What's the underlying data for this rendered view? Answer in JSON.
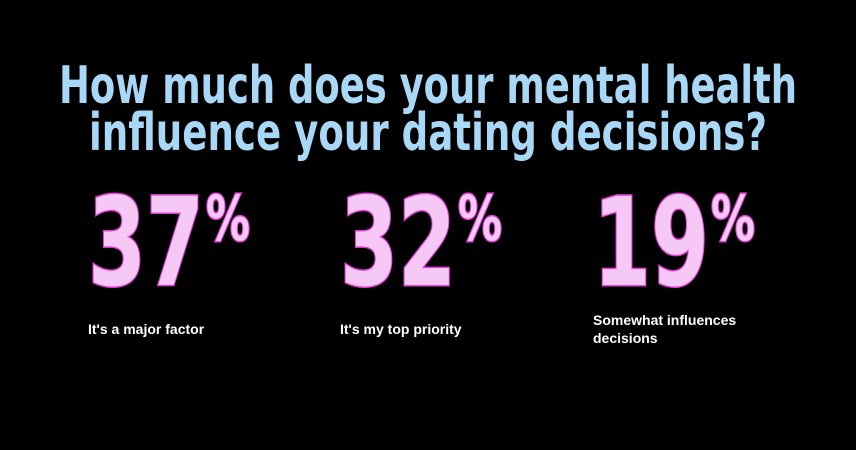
{
  "title": [
    "How much does your mental health",
    "influence your dating decisions?"
  ],
  "stats": [
    {
      "number": 37,
      "suffix": "%",
      "label": "It's a major factor"
    },
    {
      "number": 32,
      "suffix": "%",
      "label": "It's my top priority"
    },
    {
      "number": 19,
      "suffix": "%",
      "label": "Somewhat influences decisions"
    }
  ]
}
